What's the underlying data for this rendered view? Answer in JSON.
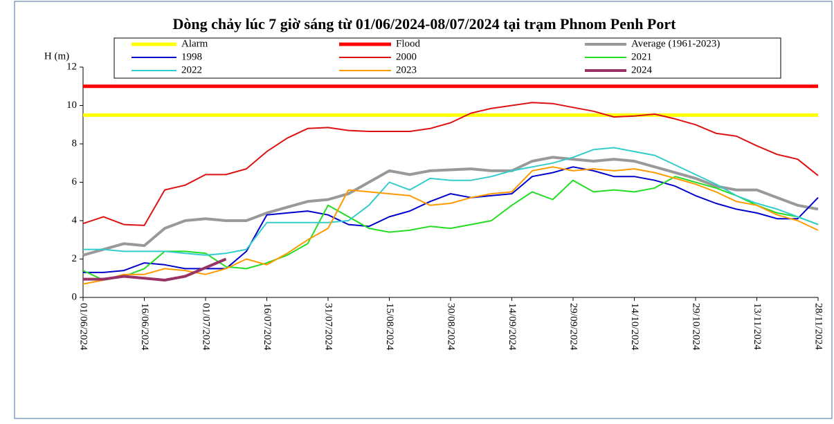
{
  "chart_data": {
    "type": "line",
    "title": "Dòng chảy lúc 7 giờ sáng từ 01/06/2024-08/07/2024 tại trạm Phnom Penh Port",
    "y_label": "H (m)",
    "x": [
      "01/06/2024",
      "06/06/2024",
      "11/06/2024",
      "16/06/2024",
      "21/06/2024",
      "26/06/2024",
      "01/07/2024",
      "06/07/2024",
      "11/07/2024",
      "16/07/2024",
      "21/07/2024",
      "26/07/2024",
      "31/07/2024",
      "05/08/2024",
      "10/08/2024",
      "15/08/2024",
      "20/08/2024",
      "25/08/2024",
      "30/08/2024",
      "04/09/2024",
      "09/09/2024",
      "14/09/2024",
      "19/09/2024",
      "24/09/2024",
      "29/09/2024",
      "04/10/2024",
      "09/10/2024",
      "14/10/2024",
      "19/10/2024",
      "24/10/2024",
      "29/10/2024",
      "03/11/2024",
      "08/11/2024",
      "13/11/2024",
      "18/11/2024",
      "23/11/2024",
      "28/11/2024"
    ],
    "xlim": [
      "01/06/2024",
      "28/11/2024"
    ],
    "xticks": [
      "01/06/2024",
      "16/06/2024",
      "01/07/2024",
      "16/07/2024",
      "31/07/2024",
      "15/08/2024",
      "30/08/2024",
      "14/09/2024",
      "29/09/2024",
      "14/10/2024",
      "29/10/2024",
      "13/11/2024",
      "28/11/2024"
    ],
    "ylim": [
      0,
      12
    ],
    "yticks": [
      0,
      2,
      4,
      6,
      8,
      10,
      12
    ],
    "series": [
      {
        "name": "Alarm",
        "color": "#ffff00",
        "width": 5,
        "values": [
          9.5,
          9.5,
          9.5,
          9.5,
          9.5,
          9.5,
          9.5,
          9.5,
          9.5,
          9.5,
          9.5,
          9.5,
          9.5,
          9.5,
          9.5,
          9.5,
          9.5,
          9.5,
          9.5,
          9.5,
          9.5,
          9.5,
          9.5,
          9.5,
          9.5,
          9.5,
          9.5,
          9.5,
          9.5,
          9.5,
          9.5,
          9.5,
          9.5,
          9.5,
          9.5,
          9.5,
          9.5
        ]
      },
      {
        "name": "Flood",
        "color": "#ff0000",
        "width": 5,
        "values": [
          11,
          11,
          11,
          11,
          11,
          11,
          11,
          11,
          11,
          11,
          11,
          11,
          11,
          11,
          11,
          11,
          11,
          11,
          11,
          11,
          11,
          11,
          11,
          11,
          11,
          11,
          11,
          11,
          11,
          11,
          11,
          11,
          11,
          11,
          11,
          11,
          11
        ]
      },
      {
        "name": "Average (1961-2023)",
        "color": "#999999",
        "width": 4,
        "values": [
          2.2,
          2.5,
          2.8,
          2.7,
          3.6,
          4.0,
          4.1,
          4.0,
          4.0,
          4.4,
          4.7,
          5.0,
          5.1,
          5.4,
          6.0,
          6.6,
          6.4,
          6.6,
          6.65,
          6.7,
          6.6,
          6.6,
          7.1,
          7.3,
          7.2,
          7.1,
          7.2,
          7.1,
          6.8,
          6.5,
          6.2,
          5.8,
          5.6,
          5.6,
          5.2,
          4.8,
          4.6
        ]
      },
      {
        "name": "1998",
        "color": "#0000cc",
        "width": 2,
        "values": [
          1.3,
          1.3,
          1.4,
          1.8,
          1.7,
          1.5,
          1.5,
          1.5,
          2.4,
          4.3,
          4.4,
          4.5,
          4.3,
          3.8,
          3.7,
          4.2,
          4.5,
          5.0,
          5.4,
          5.2,
          5.3,
          5.4,
          6.3,
          6.5,
          6.8,
          6.6,
          6.3,
          6.3,
          6.1,
          5.8,
          5.3,
          4.9,
          4.6,
          4.4,
          4.1,
          4.1,
          5.2
        ]
      },
      {
        "name": "2000",
        "color": "#dd1111",
        "width": 2,
        "values": [
          3.85,
          4.2,
          3.8,
          3.75,
          5.6,
          5.85,
          6.4,
          6.4,
          6.7,
          7.6,
          8.3,
          8.8,
          8.85,
          8.7,
          8.65,
          8.65,
          8.65,
          8.8,
          9.1,
          9.6,
          9.85,
          10.0,
          10.15,
          10.1,
          9.9,
          9.7,
          9.4,
          9.45,
          9.55,
          9.3,
          9.0,
          8.55,
          8.4,
          7.9,
          7.45,
          7.2,
          6.35
        ]
      },
      {
        "name": "2021",
        "color": "#22dd22",
        "width": 2,
        "values": [
          1.4,
          0.9,
          1.1,
          1.5,
          2.4,
          2.4,
          2.3,
          1.6,
          1.5,
          1.8,
          2.2,
          2.8,
          4.8,
          4.2,
          3.6,
          3.4,
          3.5,
          3.7,
          3.6,
          3.8,
          4.0,
          4.8,
          5.5,
          5.1,
          6.1,
          5.5,
          5.6,
          5.5,
          5.7,
          6.3,
          6.0,
          5.7,
          5.3,
          4.8,
          4.4,
          4.2,
          3.8
        ]
      },
      {
        "name": "2022",
        "color": "#33cccc",
        "width": 2,
        "values": [
          2.5,
          2.5,
          2.4,
          2.4,
          2.4,
          2.3,
          2.2,
          2.3,
          2.5,
          3.9,
          3.9,
          3.9,
          3.9,
          4.0,
          4.8,
          6.0,
          5.6,
          6.2,
          6.1,
          6.1,
          6.3,
          6.6,
          6.8,
          7.0,
          7.3,
          7.7,
          7.8,
          7.6,
          7.4,
          6.9,
          6.4,
          5.9,
          5.3,
          4.9,
          4.6,
          4.2,
          3.8
        ]
      },
      {
        "name": "2023",
        "color": "#ff9900",
        "width": 2,
        "values": [
          0.7,
          0.9,
          1.2,
          1.2,
          1.5,
          1.4,
          1.2,
          1.5,
          2.0,
          1.7,
          2.3,
          3.0,
          3.6,
          5.6,
          5.5,
          5.4,
          5.3,
          4.8,
          4.9,
          5.2,
          5.4,
          5.5,
          6.6,
          6.8,
          6.6,
          6.7,
          6.6,
          6.7,
          6.5,
          6.2,
          5.9,
          5.5,
          5.0,
          4.8,
          4.3,
          4.0,
          3.5
        ]
      },
      {
        "name": "2024",
        "color": "#993366",
        "width": 4,
        "values": [
          0.95,
          0.95,
          1.1,
          1.0,
          0.9,
          1.1,
          1.55,
          2.0,
          null,
          null,
          null,
          null,
          null,
          null,
          null,
          null,
          null,
          null,
          null,
          null,
          null,
          null,
          null,
          null,
          null,
          null,
          null,
          null,
          null,
          null,
          null,
          null,
          null,
          null,
          null,
          null,
          null
        ]
      }
    ]
  }
}
